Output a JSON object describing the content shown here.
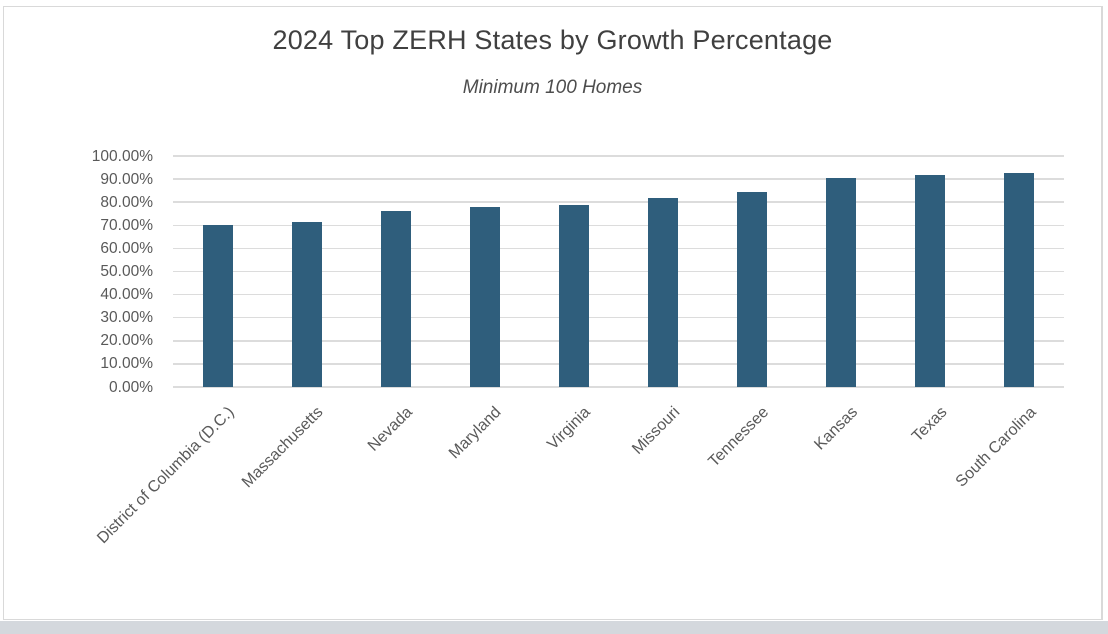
{
  "header": {
    "title": "2024 Top ZERH States by Growth Percentage",
    "subtitle": "Minimum 100 Homes"
  },
  "chart_data": {
    "type": "bar",
    "title": "2024 Top ZERH States by Growth Percentage",
    "subtitle": "Minimum 100 Homes",
    "categories": [
      "District of Columbia (D.C.)",
      "Massachusetts",
      "Nevada",
      "Maryland",
      "Virginia",
      "Missouri",
      "Tennessee",
      "Kansas",
      "Texas",
      "South Carolina"
    ],
    "values": [
      70.3,
      71.6,
      76.4,
      77.8,
      78.7,
      81.7,
      84.5,
      90.3,
      91.9,
      92.5
    ],
    "value_unit": "percent",
    "xlabel": "",
    "ylabel": "",
    "ylim": [
      0,
      100
    ],
    "ytick_step": 10,
    "ytick_labels": [
      "100.00%",
      "90.00%",
      "80.00%",
      "70.00%",
      "60.00%",
      "50.00%",
      "40.00%",
      "30.00%",
      "20.00%",
      "10.00%",
      "0.00%"
    ],
    "grid": "horizontal",
    "legend": "none",
    "colors": {
      "bar": "#2F5E7C",
      "gridline": "#DCDCDC",
      "tick_label": "#595959",
      "title": "#404040",
      "subtitle": "#4D4D4D",
      "panel_border": "#D9D9D9",
      "bottom_strip": "#D4D8DD"
    }
  }
}
